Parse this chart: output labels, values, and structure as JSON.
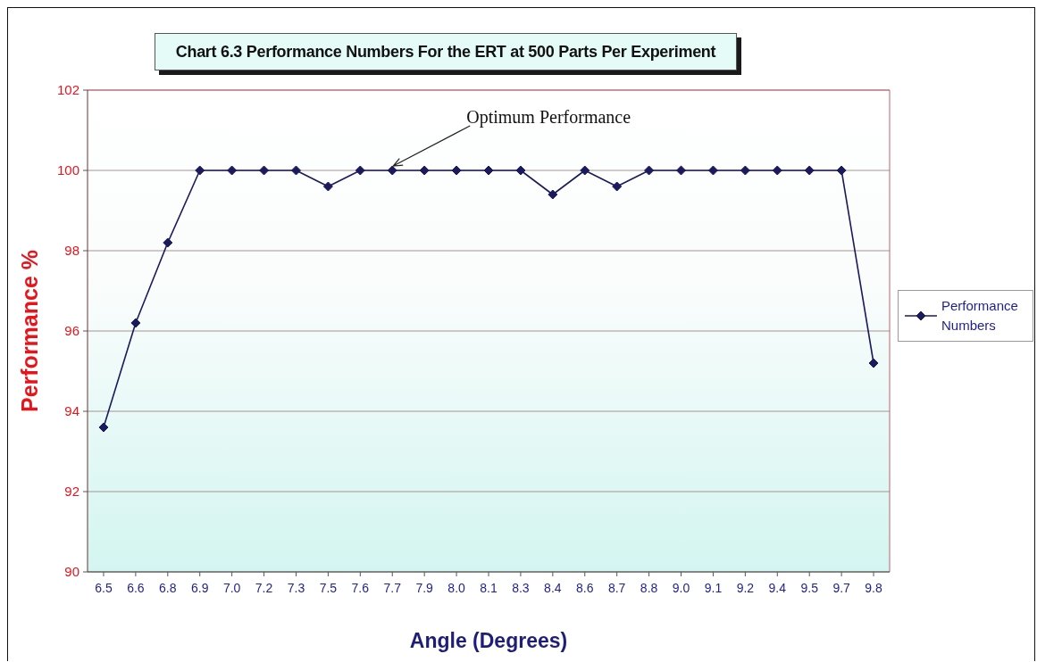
{
  "chart_data": {
    "type": "line",
    "title": "Chart 6.3 Performance Numbers For the ERT at 500 Parts Per Experiment",
    "xlabel": "Angle (Degrees)",
    "ylabel": "Performance %",
    "categories": [
      "6.5",
      "6.6",
      "6.8",
      "6.9",
      "7.0",
      "7.2",
      "7.3",
      "7.5",
      "7.6",
      "7.7",
      "7.9",
      "8.0",
      "8.1",
      "8.3",
      "8.4",
      "8.6",
      "8.7",
      "8.8",
      "9.0",
      "9.1",
      "9.2",
      "9.4",
      "9.5",
      "9.7",
      "9.8"
    ],
    "series": [
      {
        "name": "Performance Numbers",
        "color": "#1a1a5c",
        "values": [
          93.6,
          96.2,
          98.2,
          100,
          100,
          100,
          100,
          99.6,
          100,
          100,
          100,
          100,
          100,
          100,
          99.4,
          100,
          99.6,
          100,
          100,
          100,
          100,
          100,
          100,
          100,
          95.2
        ]
      }
    ],
    "ylim": [
      90,
      102
    ],
    "yticks": [
      90,
      92,
      94,
      96,
      98,
      100,
      102
    ],
    "grid": "y",
    "legend": "right",
    "marker": "diamond",
    "line_style": "solid",
    "annotations": [
      {
        "text": "Optimum Performance",
        "x": "7.7",
        "y": 100
      }
    ]
  }
}
